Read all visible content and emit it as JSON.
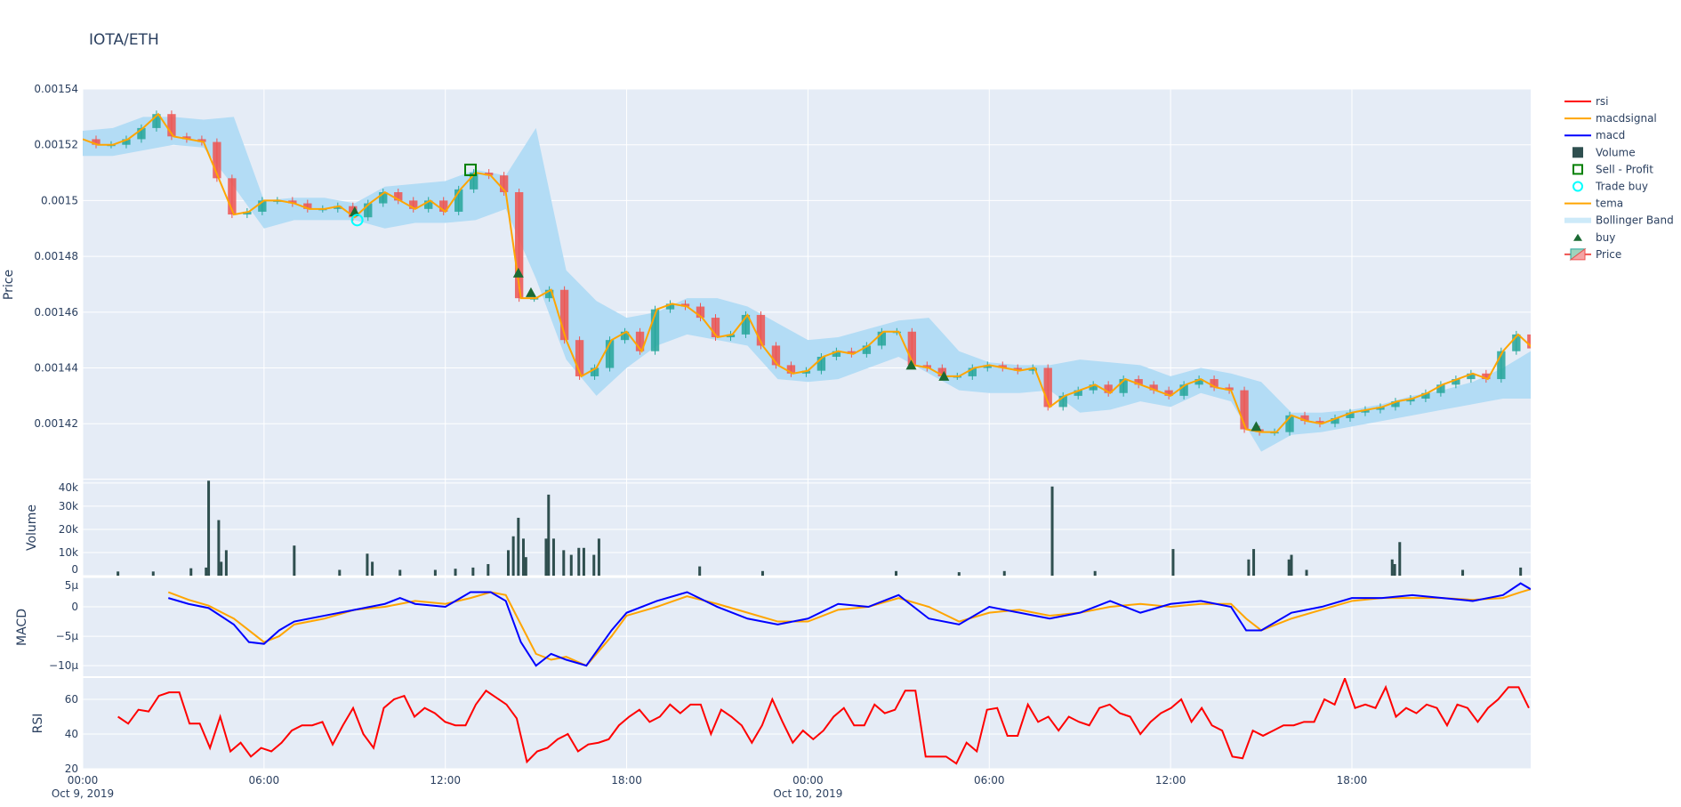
{
  "title": "IOTA/ETH",
  "colors": {
    "increasing": "#26a69a",
    "decreasing": "#ef5350",
    "tema": "#ffa500",
    "bollinger": "#b3dcf5",
    "volume": "#2f4f4f",
    "macd": "#0000ff",
    "macdsignal": "#ffa500",
    "rsi": "#ff0000",
    "buy": "#1b6b34",
    "sell_profit": "#008000",
    "trade_buy": "#00ffff",
    "plot_bg": "#e5ecf6"
  },
  "legend": {
    "placement": "right",
    "items": [
      {
        "label": "rsi",
        "icon": "line",
        "color": "#ff0000"
      },
      {
        "label": "macdsignal",
        "icon": "line",
        "color": "#ffa500"
      },
      {
        "label": "macd",
        "icon": "line",
        "color": "#0000ff"
      },
      {
        "label": "Volume",
        "icon": "square",
        "color": "#2f4f4f"
      },
      {
        "label": "Sell - Profit",
        "icon": "square-open",
        "color": "#008000"
      },
      {
        "label": "Trade buy",
        "icon": "circle-open",
        "color": "#00ffff"
      },
      {
        "label": "tema",
        "icon": "line",
        "color": "#ffa500"
      },
      {
        "label": "Bollinger Band",
        "icon": "band",
        "color": "#b3dcf5"
      },
      {
        "label": "buy",
        "icon": "triangle-up",
        "color": "#1b6b34"
      },
      {
        "label": "Price",
        "icon": "candlestick",
        "color": "#26a69a"
      }
    ]
  },
  "chart_data": {
    "type": "candlestick",
    "x_range": [
      "2019-10-09 00:00",
      "2019-10-10 23:55"
    ],
    "x_ticks": [
      {
        "t": "2019-10-09 00:00",
        "label": "00:00",
        "sub": "Oct 9, 2019"
      },
      {
        "t": "2019-10-09 06:00",
        "label": "06:00",
        "sub": ""
      },
      {
        "t": "2019-10-09 12:00",
        "label": "12:00",
        "sub": ""
      },
      {
        "t": "2019-10-09 18:00",
        "label": "18:00",
        "sub": ""
      },
      {
        "t": "2019-10-10 00:00",
        "label": "00:00",
        "sub": "Oct 10, 2019"
      },
      {
        "t": "2019-10-10 06:00",
        "label": "06:00",
        "sub": ""
      },
      {
        "t": "2019-10-10 12:00",
        "label": "12:00",
        "sub": ""
      },
      {
        "t": "2019-10-10 18:00",
        "label": "18:00",
        "sub": ""
      }
    ],
    "grid": true,
    "panels": {
      "price": {
        "ylabel": "Price",
        "ylim": [
          0.0014003,
          0.00154
        ],
        "ticks": [
          {
            "v": 0.00154,
            "label": "0.00154"
          },
          {
            "v": 0.00152,
            "label": "0.00152"
          },
          {
            "v": 0.0015,
            "label": "0.0015"
          },
          {
            "v": 0.00148,
            "label": "0.00148"
          },
          {
            "v": 0.00146,
            "label": "0.00146"
          },
          {
            "v": 0.00144,
            "label": "0.00144"
          },
          {
            "v": 0.00142,
            "label": "0.00142"
          }
        ],
        "tema": {
          "start": "2019-10-09 00:00",
          "step_minutes": 30,
          "values": [
            0.001522,
            0.00152,
            0.00152,
            0.001522,
            0.001526,
            0.001531,
            0.001523,
            0.001522,
            0.001521,
            0.001508,
            0.001495,
            0.001496,
            0.0015,
            0.0015,
            0.001499,
            0.001497,
            0.001497,
            0.001498,
            0.001494,
            0.001499,
            0.001503,
            0.0015,
            0.001497,
            0.0015,
            0.001496,
            0.001504,
            0.00151,
            0.001509,
            0.001503,
            0.001465,
            0.001465,
            0.001468,
            0.00145,
            0.001437,
            0.00144,
            0.00145,
            0.001453,
            0.001446,
            0.001461,
            0.001463,
            0.001462,
            0.001458,
            0.001451,
            0.001452,
            0.001459,
            0.001448,
            0.001441,
            0.001438,
            0.001439,
            0.001444,
            0.001446,
            0.001445,
            0.001448,
            0.001453,
            0.001453,
            0.001441,
            0.00144,
            0.001437,
            0.001437,
            0.00144,
            0.001441,
            0.00144,
            0.001439,
            0.00144,
            0.001426,
            0.00143,
            0.001432,
            0.001434,
            0.001431,
            0.001436,
            0.001434,
            0.001432,
            0.00143,
            0.001434,
            0.001436,
            0.001433,
            0.001432,
            0.001418,
            0.001417,
            0.001417,
            0.001423,
            0.001421,
            0.00142,
            0.001422,
            0.001424,
            0.001425,
            0.001426,
            0.001428,
            0.001429,
            0.001431,
            0.001434,
            0.001436,
            0.001438,
            0.001436,
            0.001446,
            0.001452,
            0.001447
          ]
        },
        "bollinger": {
          "start": "2019-10-09 00:00",
          "step_minutes": 60,
          "upper": [
            0.001525,
            0.001526,
            0.00153,
            0.00153,
            0.001529,
            0.00153,
            0.0015,
            0.001501,
            0.001501,
            0.001499,
            0.001505,
            0.001506,
            0.001507,
            0.001511,
            0.001509,
            0.001526,
            0.001475,
            0.001464,
            0.001458,
            0.00146,
            0.001465,
            0.001465,
            0.001462,
            0.001456,
            0.00145,
            0.001451,
            0.001454,
            0.001457,
            0.001458,
            0.001446,
            0.001442,
            0.001441,
            0.001441,
            0.001443,
            0.001442,
            0.001441,
            0.001437,
            0.00144,
            0.001438,
            0.001435,
            0.001424,
            0.001424,
            0.001425,
            0.001427,
            0.00143,
            0.001432,
            0.001435,
            0.00144,
            0.001446
          ],
          "lower": [
            0.001516,
            0.001516,
            0.001518,
            0.00152,
            0.001519,
            0.001505,
            0.00149,
            0.001493,
            0.001493,
            0.001493,
            0.00149,
            0.001492,
            0.001492,
            0.001493,
            0.001497,
            0.001472,
            0.001443,
            0.00143,
            0.00144,
            0.001448,
            0.001452,
            0.00145,
            0.001448,
            0.001436,
            0.001435,
            0.001436,
            0.00144,
            0.001444,
            0.001438,
            0.001432,
            0.001431,
            0.001431,
            0.001432,
            0.001424,
            0.001425,
            0.001428,
            0.001426,
            0.001431,
            0.001428,
            0.00141,
            0.001416,
            0.001417,
            0.001419,
            0.001421,
            0.001423,
            0.001425,
            0.001427,
            0.001429,
            0.001429
          ]
        },
        "buy": [
          [
            "2019-10-09 09:00",
            0.001496
          ],
          [
            "2019-10-09 14:25",
            0.001474
          ],
          [
            "2019-10-09 14:50",
            0.001467
          ],
          [
            "2019-10-10 03:25",
            0.001441
          ],
          [
            "2019-10-10 04:30",
            0.001437
          ],
          [
            "2019-10-10 14:50",
            0.001419
          ]
        ],
        "sell_profit": [
          [
            "2019-10-09 12:50",
            0.001511
          ]
        ],
        "trade_buy": [
          [
            "2019-10-09 09:05",
            0.001493
          ]
        ]
      },
      "volume": {
        "ylabel": "Volume",
        "ylim": [
          0,
          41500
        ],
        "ticks": [
          {
            "v": 40000,
            "label": "40k"
          },
          {
            "v": 30000,
            "label": "30k"
          },
          {
            "v": 20000,
            "label": "20k"
          },
          {
            "v": 10000,
            "label": "10k"
          },
          {
            "v": 0,
            "label": "0"
          }
        ],
        "bars": [
          [
            "2019-10-09 01:10",
            1800
          ],
          [
            "2019-10-09 02:20",
            1800
          ],
          [
            "2019-10-09 03:35",
            3200
          ],
          [
            "2019-10-09 04:05",
            3500
          ],
          [
            "2019-10-09 04:10",
            41000
          ],
          [
            "2019-10-09 04:30",
            24000
          ],
          [
            "2019-10-09 04:35",
            6000
          ],
          [
            "2019-10-09 04:45",
            11000
          ],
          [
            "2019-10-09 07:00",
            13000
          ],
          [
            "2019-10-09 08:30",
            2500
          ],
          [
            "2019-10-09 09:25",
            9500
          ],
          [
            "2019-10-09 09:35",
            6000
          ],
          [
            "2019-10-09 10:30",
            2500
          ],
          [
            "2019-10-09 11:40",
            2500
          ],
          [
            "2019-10-09 12:20",
            3000
          ],
          [
            "2019-10-09 12:55",
            3500
          ],
          [
            "2019-10-09 13:25",
            5000
          ],
          [
            "2019-10-09 14:05",
            11000
          ],
          [
            "2019-10-09 14:15",
            17000
          ],
          [
            "2019-10-09 14:25",
            25000
          ],
          [
            "2019-10-09 14:35",
            16000
          ],
          [
            "2019-10-09 14:40",
            8000
          ],
          [
            "2019-10-09 15:20",
            16000
          ],
          [
            "2019-10-09 15:25",
            35000
          ],
          [
            "2019-10-09 15:35",
            16000
          ],
          [
            "2019-10-09 15:55",
            11000
          ],
          [
            "2019-10-09 16:10",
            9000
          ],
          [
            "2019-10-09 16:25",
            12000
          ],
          [
            "2019-10-09 16:35",
            12000
          ],
          [
            "2019-10-09 16:55",
            9000
          ],
          [
            "2019-10-09 17:05",
            16000
          ],
          [
            "2019-10-09 20:25",
            4000
          ],
          [
            "2019-10-09 22:30",
            2000
          ],
          [
            "2019-10-10 02:55",
            2000
          ],
          [
            "2019-10-10 05:00",
            1500
          ],
          [
            "2019-10-10 06:30",
            2000
          ],
          [
            "2019-10-10 08:05",
            38500
          ],
          [
            "2019-10-10 09:30",
            2000
          ],
          [
            "2019-10-10 12:05",
            11500
          ],
          [
            "2019-10-10 14:35",
            7000
          ],
          [
            "2019-10-10 14:45",
            11500
          ],
          [
            "2019-10-10 15:55",
            7000
          ],
          [
            "2019-10-10 16:00",
            9000
          ],
          [
            "2019-10-10 16:30",
            2500
          ],
          [
            "2019-10-10 19:20",
            7000
          ],
          [
            "2019-10-10 19:25",
            5000
          ],
          [
            "2019-10-10 19:35",
            14500
          ],
          [
            "2019-10-10 21:40",
            2500
          ],
          [
            "2019-10-10 23:35",
            3500
          ]
        ]
      },
      "macd": {
        "ylabel": "MACD",
        "unit": "µ",
        "ylim": [
          -11.8,
          5
        ],
        "ticks": [
          {
            "v": 5,
            "label": "5µ"
          },
          {
            "v": 0,
            "label": "0"
          },
          {
            "v": -5,
            "label": "−5µ"
          },
          {
            "v": -10,
            "label": "−10µ"
          }
        ],
        "x": [
          "2019-10-09 02:50",
          "2019-10-09 03:30",
          "2019-10-09 04:10",
          "2019-10-09 05:00",
          "2019-10-09 05:30",
          "2019-10-09 06:00",
          "2019-10-09 06:30",
          "2019-10-09 07:00",
          "2019-10-09 08:00",
          "2019-10-09 09:00",
          "2019-10-09 10:00",
          "2019-10-09 10:30",
          "2019-10-09 11:00",
          "2019-10-09 12:00",
          "2019-10-09 12:50",
          "2019-10-09 13:30",
          "2019-10-09 14:00",
          "2019-10-09 14:30",
          "2019-10-09 15:00",
          "2019-10-09 15:30",
          "2019-10-09 16:00",
          "2019-10-09 16:40",
          "2019-10-09 17:30",
          "2019-10-09 18:00",
          "2019-10-09 19:00",
          "2019-10-09 20:00",
          "2019-10-09 21:00",
          "2019-10-09 22:00",
          "2019-10-09 23:00",
          "2019-10-10 00:00",
          "2019-10-10 01:00",
          "2019-10-10 02:00",
          "2019-10-10 03:00",
          "2019-10-10 04:00",
          "2019-10-10 05:00",
          "2019-10-10 06:00",
          "2019-10-10 07:00",
          "2019-10-10 08:00",
          "2019-10-10 09:00",
          "2019-10-10 10:00",
          "2019-10-10 11:00",
          "2019-10-10 12:00",
          "2019-10-10 13:00",
          "2019-10-10 14:00",
          "2019-10-10 14:30",
          "2019-10-10 15:00",
          "2019-10-10 16:00",
          "2019-10-10 17:00",
          "2019-10-10 18:00",
          "2019-10-10 19:00",
          "2019-10-10 20:00",
          "2019-10-10 21:00",
          "2019-10-10 22:00",
          "2019-10-10 23:00",
          "2019-10-10 23:35",
          "2019-10-10 23:55"
        ],
        "macd": [
          1.5,
          0.5,
          -0.2,
          -3,
          -6,
          -6.3,
          -4,
          -2.5,
          -1.5,
          -0.5,
          0.5,
          1.5,
          0.5,
          0,
          2.5,
          2.5,
          1,
          -6,
          -10,
          -8,
          -9,
          -10,
          -4,
          -1,
          1,
          2.5,
          0,
          -2,
          -3,
          -2,
          0.5,
          0,
          2,
          -2,
          -3,
          0,
          -1,
          -2,
          -1,
          1,
          -1,
          0.5,
          1,
          0,
          -4,
          -4,
          -1,
          0,
          1.5,
          1.5,
          2,
          1.5,
          1,
          2,
          4,
          3
        ],
        "macdsignal": [
          2.5,
          1.2,
          0.2,
          -2,
          -4,
          -6,
          -5,
          -3,
          -2,
          -0.5,
          0,
          0.5,
          1,
          0.5,
          1.5,
          2.5,
          2,
          -3,
          -8,
          -9,
          -8.5,
          -10,
          -5,
          -1.5,
          0,
          1.8,
          0.5,
          -1,
          -2.5,
          -2.5,
          -0.5,
          0,
          1.5,
          0,
          -2.5,
          -1,
          -0.5,
          -1.5,
          -1,
          0,
          0.5,
          0,
          0.5,
          0.5,
          -2,
          -4,
          -2,
          -0.5,
          1,
          1.5,
          1.5,
          1.5,
          1.2,
          1.5,
          2.5,
          3
        ]
      },
      "rsi": {
        "ylabel": "RSI",
        "ylim": [
          20,
          72.3
        ],
        "ticks": [
          {
            "v": 60,
            "label": "60"
          },
          {
            "v": 40,
            "label": "40"
          },
          {
            "v": 20,
            "label": "20"
          }
        ],
        "start": "2019-10-09 01:10",
        "step_minutes": 20.3,
        "values": [
          50,
          46,
          54,
          53,
          62,
          64,
          64,
          46,
          46,
          32,
          50,
          30,
          35,
          27,
          32,
          30,
          35,
          42,
          45,
          45,
          47,
          34,
          45,
          55,
          40,
          32,
          55,
          60,
          62,
          50,
          55,
          52,
          47,
          45,
          45,
          57,
          65,
          61,
          57,
          49,
          24,
          30,
          32,
          37,
          40,
          30,
          34,
          35,
          37,
          45,
          50,
          54,
          47,
          50,
          57,
          52,
          57,
          57,
          40,
          54,
          50,
          45,
          35,
          45,
          60,
          47,
          35,
          42,
          37,
          42,
          50,
          55,
          45,
          45,
          57,
          52,
          54,
          65,
          65,
          27,
          27,
          27,
          23,
          35,
          30,
          54,
          55,
          39,
          39,
          57,
          47,
          50,
          42,
          50,
          47,
          45,
          55,
          57,
          52,
          50,
          40,
          47,
          52,
          55,
          60,
          47,
          55,
          45,
          42,
          27,
          26,
          42,
          39,
          42,
          45,
          45,
          47,
          47,
          60,
          57,
          72,
          55,
          57,
          55,
          67,
          50,
          55,
          52,
          57,
          55,
          45,
          57,
          55,
          47,
          55,
          60,
          67,
          67,
          55
        ]
      }
    }
  }
}
